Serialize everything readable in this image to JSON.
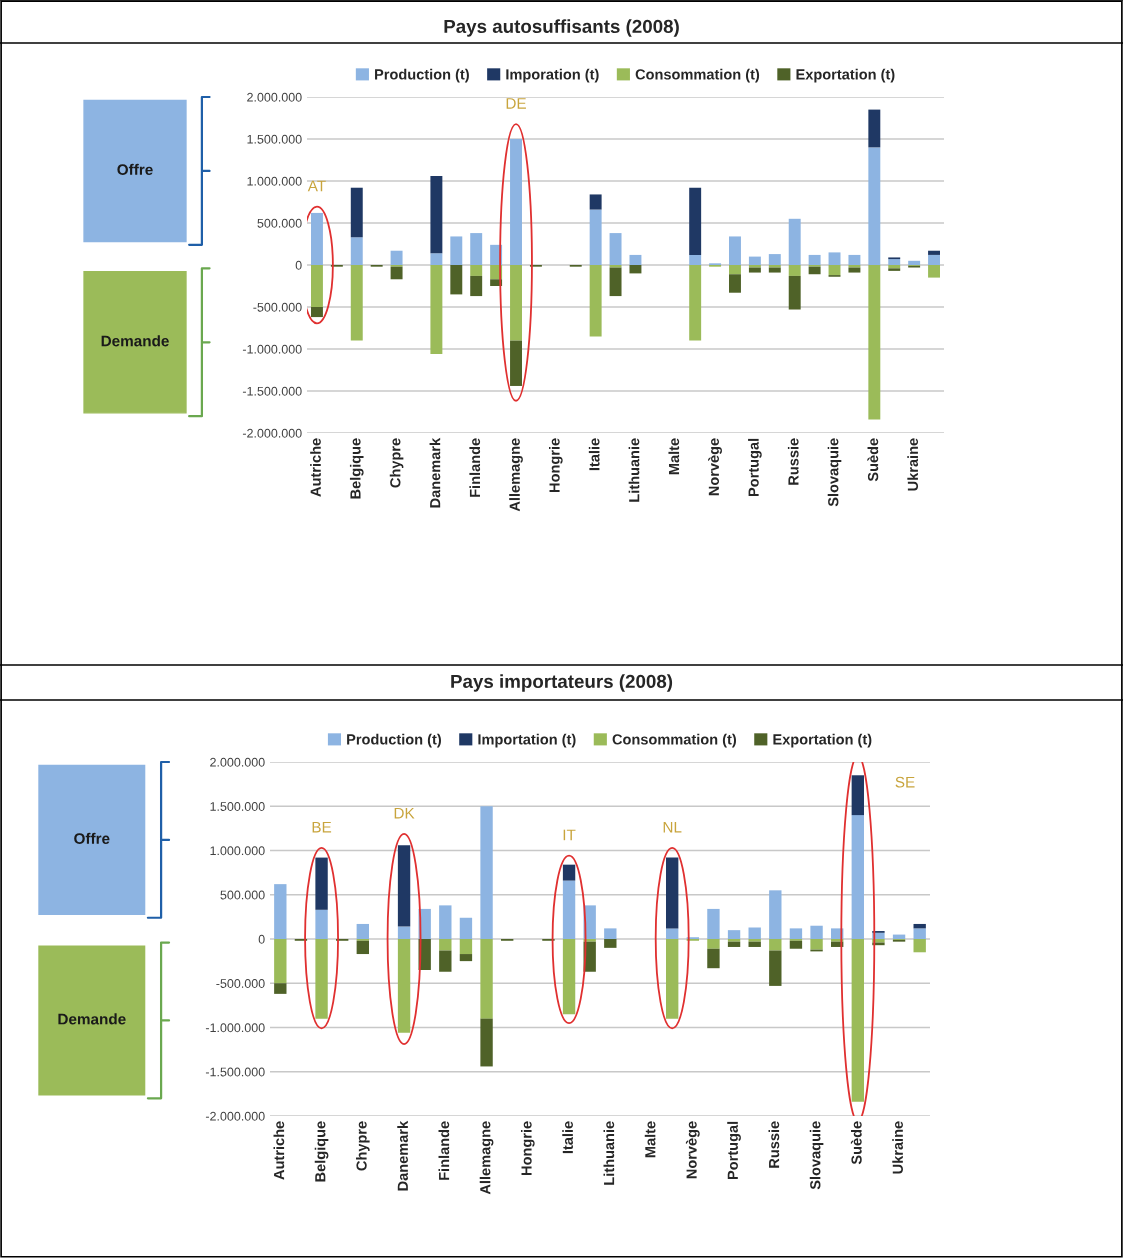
{
  "chart_data": [
    {
      "type": "bar",
      "title": "Pays autosuffisants (2008)",
      "stacked": true,
      "grid": "y",
      "legend": "top",
      "categories": [
        "Autriche",
        null,
        "Belgique",
        null,
        "Chypre",
        null,
        "Danemark",
        null,
        "Finlande",
        null,
        "Allemagne",
        null,
        "Hongrie",
        null,
        "Italie",
        null,
        "Lithuanie",
        null,
        "Malte",
        null,
        "Norvège",
        null,
        "Portugal",
        null,
        "Russie",
        null,
        "Slovaquie",
        null,
        "Suède",
        null,
        "Ukraine",
        null
      ],
      "series": [
        {
          "name": "Production (t)",
          "color": "#8db4e2",
          "values": [
            620000,
            0,
            330000,
            0,
            170000,
            0,
            140000,
            340000,
            380000,
            240000,
            1500000,
            0,
            0,
            0,
            660000,
            380000,
            120000,
            0,
            0,
            120000,
            20000,
            340000,
            100000,
            130000,
            550000,
            120000,
            150000,
            120000,
            1400000,
            70000,
            50000,
            120000
          ]
        },
        {
          "name": "Imporation (t)",
          "color": "#1f3864",
          "values": [
            0,
            0,
            590000,
            0,
            0,
            0,
            920000,
            0,
            0,
            0,
            0,
            0,
            0,
            0,
            180000,
            0,
            0,
            0,
            0,
            800000,
            0,
            0,
            0,
            0,
            0,
            0,
            0,
            0,
            450000,
            20000,
            0,
            50000
          ]
        },
        {
          "name": "Consommation (t)",
          "color": "#9bbb59",
          "values": [
            -500000,
            0,
            -900000,
            0,
            -20000,
            0,
            -1060000,
            0,
            -130000,
            -170000,
            -900000,
            0,
            0,
            0,
            -850000,
            -30000,
            0,
            0,
            0,
            -900000,
            -20000,
            -110000,
            -30000,
            -30000,
            -130000,
            -20000,
            -120000,
            -30000,
            -1840000,
            -40000,
            -10000,
            -150000
          ]
        },
        {
          "name": "Exportation (t)",
          "color": "#4f6228",
          "values": [
            -120000,
            -20000,
            0,
            -20000,
            -150000,
            0,
            0,
            -350000,
            -240000,
            -80000,
            -540000,
            -20000,
            0,
            -20000,
            0,
            -340000,
            -100000,
            0,
            0,
            0,
            0,
            -220000,
            -60000,
            -60000,
            -400000,
            -90000,
            -20000,
            -60000,
            0,
            -30000,
            -20000,
            0
          ]
        }
      ],
      "ylim": [
        -2000000,
        2000000
      ],
      "yticks": [
        {
          "value": -2000000,
          "label": "-2.000.000"
        },
        {
          "value": -1500000,
          "label": "-1.500.000"
        },
        {
          "value": -1000000,
          "label": "-1.000.000"
        },
        {
          "value": -500000,
          "label": "-500.000"
        },
        0,
        {
          "value": 500000,
          "label": "500.000"
        },
        {
          "value": 1000000,
          "label": "1.000.000"
        },
        {
          "value": 1500000,
          "label": "1.500.000"
        },
        {
          "value": 2000000,
          "label": "2.000.000"
        }
      ],
      "annotations": [
        "Offre",
        "Demande",
        {
          "text": "AT",
          "x": "Autriche",
          "y": 620000
        },
        {
          "text": "DE",
          "x": "Allemagne",
          "y": 1500000
        }
      ]
    },
    {
      "type": "bar",
      "title": "Pays importateurs (2008)",
      "stacked": true,
      "grid": "y",
      "legend": "top",
      "categories": [
        "Autriche",
        null,
        "Belgique",
        null,
        "Chypre",
        null,
        "Danemark",
        null,
        "Finlande",
        null,
        "Allemagne",
        null,
        "Hongrie",
        null,
        "Italie",
        null,
        "Lithuanie",
        null,
        "Malte",
        null,
        "Norvège",
        null,
        "Portugal",
        null,
        "Russie",
        null,
        "Slovaquie",
        null,
        "Suède",
        null,
        "Ukraine",
        null
      ],
      "series": [
        {
          "name": "Production (t)",
          "color": "#8db4e2",
          "values": [
            620000,
            0,
            330000,
            0,
            170000,
            0,
            140000,
            340000,
            380000,
            240000,
            1500000,
            0,
            0,
            0,
            660000,
            380000,
            120000,
            0,
            0,
            120000,
            20000,
            340000,
            100000,
            130000,
            550000,
            120000,
            150000,
            120000,
            1400000,
            70000,
            50000,
            120000
          ]
        },
        {
          "name": "Importation (t)",
          "color": "#1f3864",
          "values": [
            0,
            0,
            590000,
            0,
            0,
            0,
            920000,
            0,
            0,
            0,
            0,
            0,
            0,
            0,
            180000,
            0,
            0,
            0,
            0,
            800000,
            0,
            0,
            0,
            0,
            0,
            0,
            0,
            0,
            450000,
            20000,
            0,
            50000
          ]
        },
        {
          "name": "Consommation (t)",
          "color": "#9bbb59",
          "values": [
            -500000,
            0,
            -900000,
            0,
            -20000,
            0,
            -1060000,
            0,
            -130000,
            -170000,
            -900000,
            0,
            0,
            0,
            -850000,
            -30000,
            0,
            0,
            0,
            -900000,
            -20000,
            -110000,
            -30000,
            -30000,
            -130000,
            -20000,
            -120000,
            -30000,
            -1840000,
            -40000,
            -10000,
            -150000
          ]
        },
        {
          "name": "Exportation (t)",
          "color": "#4f6228",
          "values": [
            -120000,
            -20000,
            0,
            -20000,
            -150000,
            0,
            0,
            -350000,
            -240000,
            -80000,
            -540000,
            -20000,
            0,
            -20000,
            0,
            -340000,
            -100000,
            0,
            0,
            0,
            0,
            -220000,
            -60000,
            -60000,
            -400000,
            -90000,
            -20000,
            -60000,
            0,
            -30000,
            -20000,
            0
          ]
        }
      ],
      "ylim": [
        -2000000,
        2000000
      ],
      "yticks": [
        {
          "value": -2000000,
          "label": "-2.000.000"
        },
        {
          "value": -1500000,
          "label": "-1.500.000"
        },
        {
          "value": -1000000,
          "label": "-1.000.000"
        },
        {
          "value": -500000,
          "label": "-500.000"
        },
        0,
        {
          "value": 500000,
          "label": "500.000"
        },
        {
          "value": 1000000,
          "label": "1.000.000"
        },
        {
          "value": 1500000,
          "label": "1.500.000"
        },
        {
          "value": 2000000,
          "label": "2.000.000"
        }
      ],
      "annotations": [
        "Offre",
        "Demande",
        {
          "text": "BE",
          "x": "Belgique",
          "y": 920000
        },
        {
          "text": "DK",
          "x": "Danemark",
          "y": 1060000
        },
        {
          "text": "IT",
          "x": "Italie",
          "y": 840000
        },
        "NL",
        {
          "text": "SE",
          "x": "Suède",
          "y": 1850000
        }
      ]
    }
  ]
}
